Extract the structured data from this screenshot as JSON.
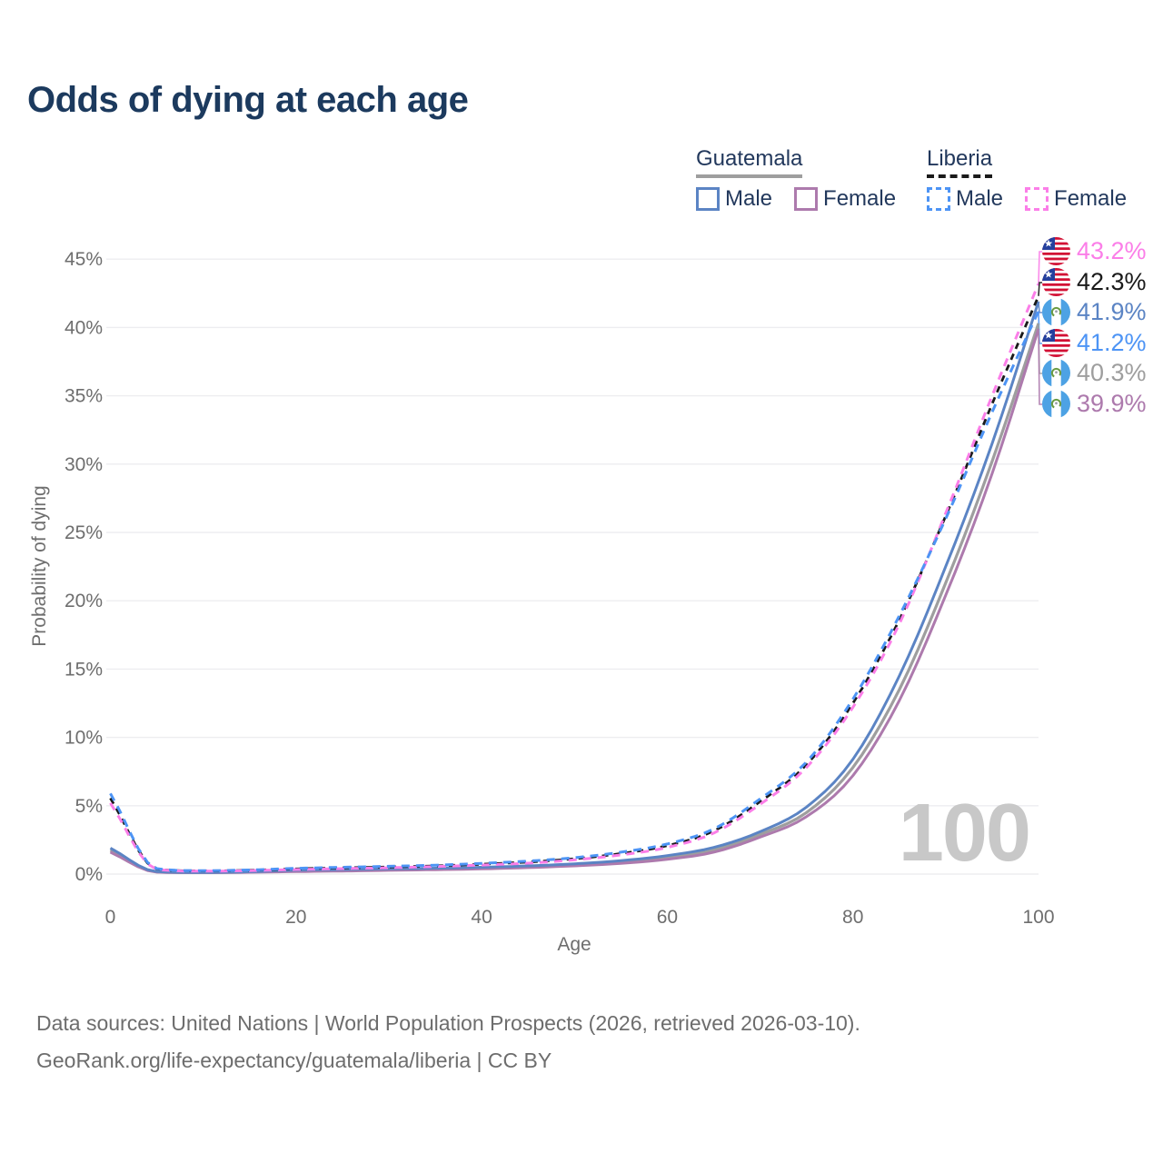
{
  "title": "Odds of dying at each age",
  "legend": {
    "groups": [
      {
        "name": "Guatemala",
        "line_color": "#9e9e9e",
        "line_style": "solid",
        "items": [
          {
            "label": "Male",
            "color": "#5b84c4",
            "dashed": false
          },
          {
            "label": "Female",
            "color": "#ad7aad",
            "dashed": false
          }
        ]
      },
      {
        "name": "Liberia",
        "line_color": "#1a1a1a",
        "line_style": "dashed",
        "items": [
          {
            "label": "Male",
            "color": "#4d94f5",
            "dashed": true
          },
          {
            "label": "Female",
            "color": "#fb7ee8",
            "dashed": true
          }
        ]
      }
    ]
  },
  "watermark": "100",
  "footer": {
    "line1": "Data sources: United Nations | World Population Prospects (2026, retrieved 2026-03-10).",
    "line2": "GeoRank.org/life-expectancy/guatemala/liberia | CC BY"
  },
  "end_labels": [
    {
      "value": "43.2%",
      "pct": 43.2,
      "color": "#fb7ee8",
      "flag": "liberia",
      "series": "Liberia Female"
    },
    {
      "value": "42.3%",
      "pct": 42.3,
      "color": "#1a1a1a",
      "flag": "liberia",
      "series": "Liberia"
    },
    {
      "value": "41.9%",
      "pct": 41.9,
      "color": "#5b84c4",
      "flag": "guatemala",
      "series": "Guatemala Male"
    },
    {
      "value": "41.2%",
      "pct": 41.2,
      "color": "#4d94f5",
      "flag": "liberia",
      "series": "Liberia Male"
    },
    {
      "value": "40.3%",
      "pct": 40.3,
      "color": "#9e9e9e",
      "flag": "guatemala",
      "series": "Guatemala"
    },
    {
      "value": "39.9%",
      "pct": 39.9,
      "color": "#ad7aad",
      "flag": "guatemala",
      "series": "Guatemala Female"
    }
  ],
  "chart_data": {
    "type": "line",
    "title": "Odds of dying at each age",
    "xlabel": "Age",
    "ylabel": "Probability of dying",
    "xlim": [
      0,
      100
    ],
    "ylim": [
      0,
      45
    ],
    "x_ticks": [
      0,
      20,
      40,
      60,
      80,
      100
    ],
    "y_ticks": [
      {
        "value": 0,
        "label": "0%"
      },
      {
        "value": 5,
        "label": "5%"
      },
      {
        "value": 10,
        "label": "10%"
      },
      {
        "value": 15,
        "label": "15%"
      },
      {
        "value": 20,
        "label": "20%"
      },
      {
        "value": 25,
        "label": "25%"
      },
      {
        "value": 30,
        "label": "30%"
      },
      {
        "value": 35,
        "label": "35%"
      },
      {
        "value": 40,
        "label": "40%"
      },
      {
        "value": 45,
        "label": "45%"
      }
    ],
    "grid": "horizontal",
    "x": [
      0,
      5,
      10,
      15,
      20,
      25,
      30,
      35,
      40,
      45,
      50,
      55,
      60,
      65,
      70,
      75,
      80,
      85,
      90,
      95,
      100
    ],
    "series": [
      {
        "name": "Guatemala",
        "country": "guatemala",
        "sex": "both",
        "color": "#9e9e9e",
        "dashed": false,
        "width": 3.2,
        "end_label": "40.3%",
        "values": [
          1.75,
          0.16,
          0.11,
          0.15,
          0.23,
          0.28,
          0.32,
          0.37,
          0.44,
          0.53,
          0.67,
          0.87,
          1.2,
          1.75,
          2.9,
          4.5,
          7.8,
          13.5,
          21.3,
          30.2,
          40.3
        ]
      },
      {
        "name": "Guatemala Female",
        "country": "guatemala",
        "sex": "female",
        "color": "#ad7aad",
        "dashed": false,
        "width": 3,
        "end_label": "39.9%",
        "values": [
          1.6,
          0.14,
          0.1,
          0.13,
          0.18,
          0.22,
          0.27,
          0.32,
          0.38,
          0.47,
          0.6,
          0.78,
          1.08,
          1.6,
          2.7,
          4.2,
          7.2,
          12.7,
          20.4,
          29.3,
          39.9
        ]
      },
      {
        "name": "Guatemala Male",
        "country": "guatemala",
        "sex": "male",
        "color": "#5b84c4",
        "dashed": false,
        "width": 3,
        "end_label": "41.9%",
        "values": [
          1.9,
          0.18,
          0.12,
          0.17,
          0.28,
          0.33,
          0.38,
          0.43,
          0.5,
          0.6,
          0.75,
          0.98,
          1.35,
          1.95,
          3.1,
          4.9,
          8.4,
          14.5,
          22.5,
          31.5,
          41.9
        ]
      },
      {
        "name": "Liberia",
        "country": "liberia",
        "sex": "both",
        "color": "#1a1a1a",
        "dashed": true,
        "width": 2.8,
        "end_label": "42.3%",
        "values": [
          5.55,
          0.37,
          0.23,
          0.28,
          0.38,
          0.45,
          0.52,
          0.6,
          0.72,
          0.88,
          1.12,
          1.5,
          2.08,
          3.15,
          5.3,
          8.0,
          12.5,
          18.6,
          26.2,
          34.4,
          42.3
        ]
      },
      {
        "name": "Liberia Female",
        "country": "liberia",
        "sex": "female",
        "color": "#fb7ee8",
        "dashed": true,
        "width": 3,
        "end_label": "43.2%",
        "values": [
          5.2,
          0.34,
          0.21,
          0.25,
          0.33,
          0.4,
          0.46,
          0.55,
          0.66,
          0.8,
          1.04,
          1.4,
          1.95,
          3.0,
          5.1,
          7.8,
          12.2,
          18.3,
          26.4,
          35.0,
          43.2
        ]
      },
      {
        "name": "Liberia Male",
        "country": "liberia",
        "sex": "male",
        "color": "#4d94f5",
        "dashed": true,
        "width": 3,
        "end_label": "41.2%",
        "values": [
          5.9,
          0.4,
          0.25,
          0.3,
          0.42,
          0.5,
          0.57,
          0.65,
          0.78,
          0.95,
          1.2,
          1.6,
          2.2,
          3.3,
          5.5,
          8.2,
          12.8,
          18.9,
          26.0,
          33.8,
          41.2
        ]
      }
    ]
  }
}
